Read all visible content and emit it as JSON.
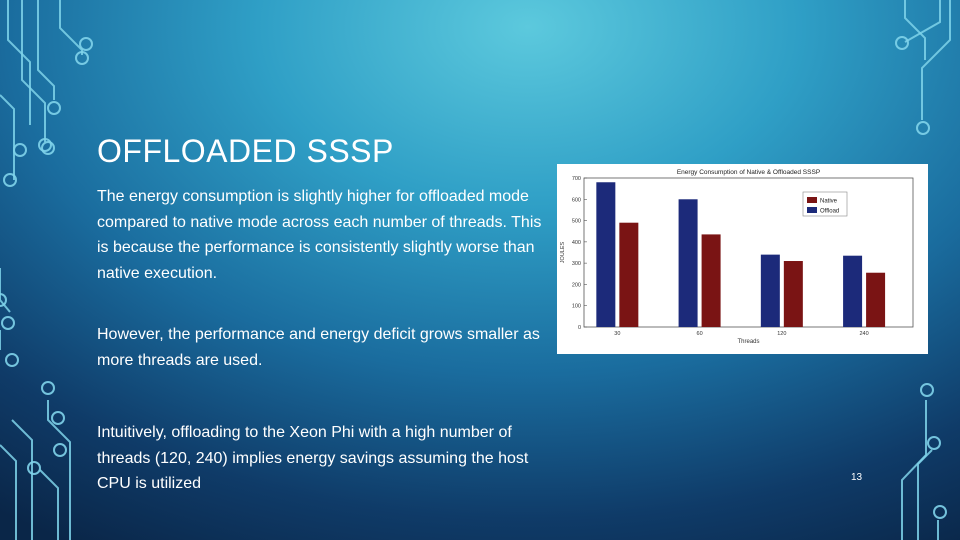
{
  "slide": {
    "title": "OFFLOADED SSSP",
    "paragraphs": [
      "The energy consumption is slightly higher for offloaded mode compared to native mode across each number of threads. This is because the performance is consistently slightly worse than native execution.",
      "However, the performance and energy deficit grows smaller as more threads are used.",
      "Intuitively, offloading to the Xeon Phi with a high number of threads (120, 240) implies energy savings assuming the host CPU is utilized"
    ],
    "page_number": "13"
  },
  "chart_data": {
    "type": "bar",
    "title": "Energy Consumption of Native & Offloaded SSSP",
    "xlabel": "Threads",
    "ylabel": "JOULES",
    "categories": [
      "30",
      "60",
      "120",
      "240"
    ],
    "series": [
      {
        "name": "Native",
        "color": "#7a1414",
        "values": [
          490,
          435,
          310,
          255
        ]
      },
      {
        "name": "Offload",
        "color": "#1c2a7a",
        "values": [
          680,
          600,
          340,
          335
        ]
      }
    ],
    "ylim": [
      0,
      700
    ],
    "yticks": [
      0,
      100,
      200,
      300,
      400,
      500,
      600,
      700
    ],
    "grid": false,
    "legend_position": "top-right"
  },
  "colors": {
    "circuit_line": "#7fd3ea"
  }
}
